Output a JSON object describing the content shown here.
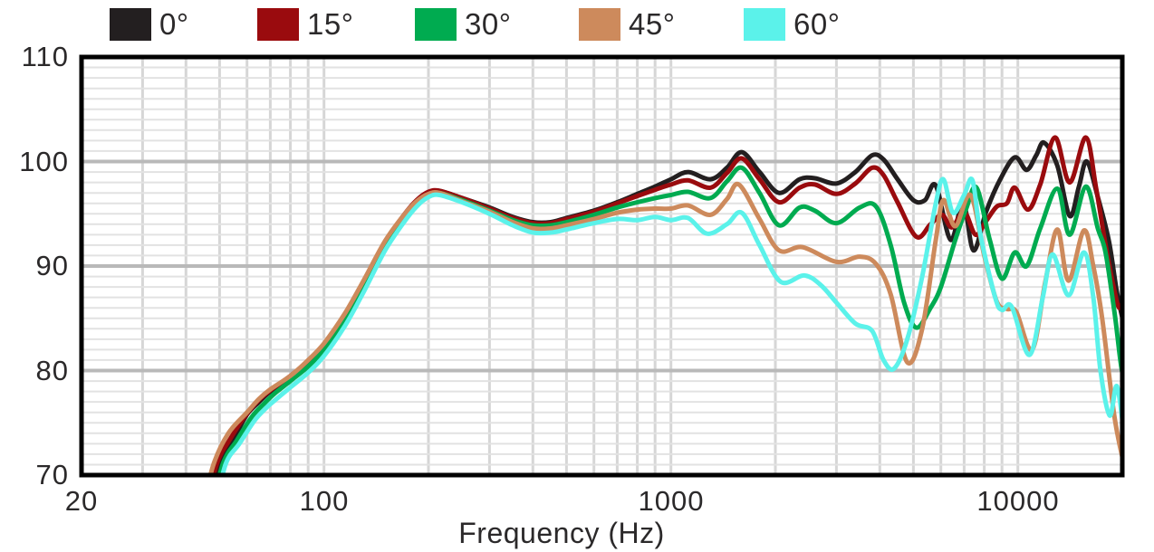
{
  "chart_data": {
    "type": "line",
    "title": "",
    "xlabel": "Frequency (Hz)",
    "ylabel": "",
    "x_scale": "log",
    "xlim": [
      20,
      20000
    ],
    "ylim": [
      70,
      110
    ],
    "grid": true,
    "legend_position": "top",
    "y_minor_step_db": 1,
    "y_major_step_db": 10,
    "x_ticks": [
      {
        "value": 20,
        "label": "20"
      },
      {
        "value": 100,
        "label": "100"
      },
      {
        "value": 1000,
        "label": "1000"
      },
      {
        "value": 10000,
        "label": "10000"
      }
    ],
    "y_ticks": [
      {
        "value": 110,
        "label": "110"
      },
      {
        "value": 100,
        "label": "100"
      },
      {
        "value": 90,
        "label": "90"
      },
      {
        "value": 80,
        "label": "80"
      },
      {
        "value": 70,
        "label": "70"
      }
    ],
    "x_gridlines": [
      30,
      40,
      50,
      60,
      70,
      80,
      90,
      100,
      200,
      300,
      400,
      500,
      600,
      700,
      800,
      900,
      1000,
      2000,
      3000,
      4000,
      5000,
      6000,
      7000,
      8000,
      9000,
      10000
    ],
    "series": [
      {
        "name": "0°",
        "color": "#231f20",
        "points": [
          [
            46,
            66
          ],
          [
            50,
            71
          ],
          [
            55,
            73.5
          ],
          [
            60,
            75.8
          ],
          [
            65,
            77
          ],
          [
            70,
            78
          ],
          [
            80,
            79.3
          ],
          [
            90,
            80.7
          ],
          [
            100,
            82.3
          ],
          [
            115,
            85.2
          ],
          [
            130,
            88.3
          ],
          [
            150,
            92.2
          ],
          [
            170,
            94.8
          ],
          [
            185,
            96.2
          ],
          [
            200,
            97
          ],
          [
            215,
            97.2
          ],
          [
            250,
            96.5
          ],
          [
            300,
            95.6
          ],
          [
            350,
            94.7
          ],
          [
            400,
            94.2
          ],
          [
            450,
            94.2
          ],
          [
            500,
            94.6
          ],
          [
            600,
            95.3
          ],
          [
            700,
            96.1
          ],
          [
            800,
            96.9
          ],
          [
            900,
            97.6
          ],
          [
            1000,
            98.3
          ],
          [
            1120,
            99
          ],
          [
            1300,
            98.3
          ],
          [
            1450,
            99.4
          ],
          [
            1600,
            100.9
          ],
          [
            1800,
            99
          ],
          [
            2050,
            97
          ],
          [
            2350,
            98.3
          ],
          [
            2600,
            98.4
          ],
          [
            3000,
            97.9
          ],
          [
            3400,
            99
          ],
          [
            3800,
            100.6
          ],
          [
            4100,
            100.2
          ],
          [
            4500,
            98.3
          ],
          [
            5000,
            96.3
          ],
          [
            5400,
            96.3
          ],
          [
            5800,
            97.7
          ],
          [
            6400,
            92.5
          ],
          [
            6950,
            96.1
          ],
          [
            7450,
            91.5
          ],
          [
            8100,
            95.2
          ],
          [
            8900,
            98.3
          ],
          [
            9800,
            100.4
          ],
          [
            10600,
            99.2
          ],
          [
            11300,
            100.6
          ],
          [
            11900,
            101.8
          ],
          [
            13000,
            99.6
          ],
          [
            14100,
            94.8
          ],
          [
            15000,
            97.6
          ],
          [
            15800,
            100
          ],
          [
            17000,
            96.6
          ],
          [
            18300,
            92.4
          ],
          [
            19300,
            87.5
          ],
          [
            20400,
            83.8
          ]
        ]
      },
      {
        "name": "15°",
        "color": "#9a0b0e",
        "points": [
          [
            45,
            66
          ],
          [
            49,
            71
          ],
          [
            54,
            73.6
          ],
          [
            60,
            75.9
          ],
          [
            65,
            77.2
          ],
          [
            70,
            78.1
          ],
          [
            80,
            79.5
          ],
          [
            90,
            80.9
          ],
          [
            100,
            82.5
          ],
          [
            115,
            85.4
          ],
          [
            130,
            88.5
          ],
          [
            150,
            92.3
          ],
          [
            170,
            94.9
          ],
          [
            185,
            96.3
          ],
          [
            200,
            97.1
          ],
          [
            215,
            97.2
          ],
          [
            250,
            96.5
          ],
          [
            300,
            95.5
          ],
          [
            350,
            94.6
          ],
          [
            400,
            94.1
          ],
          [
            450,
            94.1
          ],
          [
            500,
            94.5
          ],
          [
            600,
            95.2
          ],
          [
            700,
            96
          ],
          [
            800,
            96.7
          ],
          [
            900,
            97.3
          ],
          [
            1000,
            97.8
          ],
          [
            1120,
            98.2
          ],
          [
            1300,
            97.5
          ],
          [
            1450,
            98.9
          ],
          [
            1600,
            100.3
          ],
          [
            1800,
            98.3
          ],
          [
            2050,
            96.1
          ],
          [
            2350,
            97.5
          ],
          [
            2600,
            97.8
          ],
          [
            3000,
            96.9
          ],
          [
            3400,
            97.9
          ],
          [
            3800,
            99.4
          ],
          [
            4100,
            98.7
          ],
          [
            4500,
            96.1
          ],
          [
            5100,
            92.8
          ],
          [
            5600,
            94
          ],
          [
            6050,
            94.9
          ],
          [
            6450,
            93.7
          ],
          [
            7000,
            95.2
          ],
          [
            7550,
            93
          ],
          [
            8100,
            94.3
          ],
          [
            8700,
            95.7
          ],
          [
            9300,
            96
          ],
          [
            9800,
            97.5
          ],
          [
            10700,
            95.4
          ],
          [
            11600,
            97.8
          ],
          [
            12800,
            102.3
          ],
          [
            14100,
            98
          ],
          [
            15700,
            102.3
          ],
          [
            16800,
            97.5
          ],
          [
            17800,
            92.5
          ],
          [
            18800,
            88.3
          ],
          [
            19600,
            86
          ],
          [
            20400,
            87.5
          ]
        ]
      },
      {
        "name": "30°",
        "color": "#00ab50",
        "points": [
          [
            47,
            66
          ],
          [
            51,
            71
          ],
          [
            56,
            73.3
          ],
          [
            62,
            75.6
          ],
          [
            67,
            76.8
          ],
          [
            72,
            77.8
          ],
          [
            80,
            79
          ],
          [
            90,
            80.4
          ],
          [
            100,
            82
          ],
          [
            115,
            85
          ],
          [
            130,
            88.1
          ],
          [
            150,
            92
          ],
          [
            170,
            94.6
          ],
          [
            185,
            96
          ],
          [
            200,
            96.8
          ],
          [
            215,
            97
          ],
          [
            250,
            96.3
          ],
          [
            300,
            95.3
          ],
          [
            350,
            94.4
          ],
          [
            400,
            93.9
          ],
          [
            450,
            93.9
          ],
          [
            500,
            94.2
          ],
          [
            600,
            94.9
          ],
          [
            700,
            95.6
          ],
          [
            800,
            96.1
          ],
          [
            900,
            96.5
          ],
          [
            1000,
            96.8
          ],
          [
            1120,
            97.1
          ],
          [
            1300,
            96.5
          ],
          [
            1450,
            98.1
          ],
          [
            1600,
            99.4
          ],
          [
            1800,
            97
          ],
          [
            2050,
            93.9
          ],
          [
            2350,
            95.6
          ],
          [
            2600,
            95.3
          ],
          [
            3000,
            94.1
          ],
          [
            3500,
            95.6
          ],
          [
            3900,
            95.7
          ],
          [
            4300,
            92
          ],
          [
            4700,
            86.5
          ],
          [
            5100,
            84.1
          ],
          [
            5600,
            86
          ],
          [
            6000,
            88
          ],
          [
            6600,
            92.5
          ],
          [
            7100,
            95.5
          ],
          [
            7600,
            97.5
          ],
          [
            8300,
            92.5
          ],
          [
            9000,
            88.8
          ],
          [
            9800,
            91.3
          ],
          [
            10600,
            90
          ],
          [
            11600,
            93.6
          ],
          [
            13000,
            97.4
          ],
          [
            14100,
            93
          ],
          [
            15700,
            97.6
          ],
          [
            17000,
            93.6
          ],
          [
            17900,
            91.3
          ],
          [
            19000,
            85.5
          ],
          [
            20100,
            79.7
          ],
          [
            20600,
            85
          ]
        ]
      },
      {
        "name": "45°",
        "color": "#cd8a5c",
        "points": [
          [
            44,
            66
          ],
          [
            48,
            71
          ],
          [
            53,
            74
          ],
          [
            60,
            76
          ],
          [
            65,
            77.3
          ],
          [
            70,
            78.2
          ],
          [
            80,
            79.5
          ],
          [
            90,
            81
          ],
          [
            100,
            82.6
          ],
          [
            115,
            85.5
          ],
          [
            130,
            88.6
          ],
          [
            150,
            92.4
          ],
          [
            170,
            94.9
          ],
          [
            185,
            96.2
          ],
          [
            200,
            96.9
          ],
          [
            215,
            97
          ],
          [
            250,
            96.2
          ],
          [
            300,
            95.2
          ],
          [
            350,
            94.2
          ],
          [
            400,
            93.6
          ],
          [
            450,
            93.6
          ],
          [
            500,
            93.9
          ],
          [
            600,
            94.5
          ],
          [
            700,
            95.1
          ],
          [
            800,
            95.4
          ],
          [
            900,
            95.5
          ],
          [
            1000,
            95.5
          ],
          [
            1120,
            95.8
          ],
          [
            1300,
            94.9
          ],
          [
            1450,
            96.4
          ],
          [
            1570,
            97.8
          ],
          [
            1800,
            94.5
          ],
          [
            2050,
            91.5
          ],
          [
            2400,
            91.8
          ],
          [
            3000,
            90.4
          ],
          [
            3500,
            90.9
          ],
          [
            3900,
            90.2
          ],
          [
            4300,
            87.3
          ],
          [
            4800,
            80.8
          ],
          [
            5300,
            84
          ],
          [
            5800,
            92.5
          ],
          [
            6100,
            96.3
          ],
          [
            6600,
            93.8
          ],
          [
            7300,
            96.8
          ],
          [
            8000,
            91
          ],
          [
            8700,
            86.6
          ],
          [
            9300,
            85.9
          ],
          [
            9900,
            85.6
          ],
          [
            11000,
            82
          ],
          [
            12000,
            88.5
          ],
          [
            13000,
            93.5
          ],
          [
            14000,
            88.6
          ],
          [
            15500,
            93.4
          ],
          [
            16500,
            90
          ],
          [
            17500,
            85
          ],
          [
            19000,
            75.5
          ],
          [
            20400,
            70.5
          ]
        ]
      },
      {
        "name": "60°",
        "color": "#5bf2ea",
        "points": [
          [
            48,
            66
          ],
          [
            52,
            71
          ],
          [
            57,
            73
          ],
          [
            63,
            75.2
          ],
          [
            68,
            76.4
          ],
          [
            73,
            77.3
          ],
          [
            80,
            78.4
          ],
          [
            90,
            79.8
          ],
          [
            100,
            81.4
          ],
          [
            115,
            84.3
          ],
          [
            130,
            87.5
          ],
          [
            150,
            91.5
          ],
          [
            170,
            94.2
          ],
          [
            185,
            95.7
          ],
          [
            200,
            96.6
          ],
          [
            215,
            96.8
          ],
          [
            250,
            96.1
          ],
          [
            300,
            95
          ],
          [
            350,
            93.9
          ],
          [
            400,
            93.2
          ],
          [
            450,
            93.2
          ],
          [
            500,
            93.5
          ],
          [
            600,
            94.1
          ],
          [
            700,
            94.5
          ],
          [
            800,
            94.4
          ],
          [
            900,
            94.7
          ],
          [
            1000,
            94.4
          ],
          [
            1120,
            94.6
          ],
          [
            1270,
            93.1
          ],
          [
            1450,
            94
          ],
          [
            1600,
            95.1
          ],
          [
            1800,
            92
          ],
          [
            2070,
            88.5
          ],
          [
            2420,
            89.1
          ],
          [
            2700,
            88.2
          ],
          [
            3000,
            86.5
          ],
          [
            3400,
            84.5
          ],
          [
            3800,
            83.8
          ],
          [
            4100,
            81
          ],
          [
            4400,
            80.2
          ],
          [
            4800,
            83
          ],
          [
            5300,
            89
          ],
          [
            5800,
            96
          ],
          [
            6100,
            98.3
          ],
          [
            6500,
            95.1
          ],
          [
            7000,
            96.8
          ],
          [
            7400,
            98.2
          ],
          [
            7800,
            93
          ],
          [
            8600,
            87
          ],
          [
            9000,
            85.8
          ],
          [
            9600,
            86.1
          ],
          [
            10800,
            81.5
          ],
          [
            11800,
            87
          ],
          [
            12600,
            91.1
          ],
          [
            14000,
            87.2
          ],
          [
            15500,
            91.3
          ],
          [
            16500,
            87
          ],
          [
            17300,
            80
          ],
          [
            18400,
            75.7
          ],
          [
            19300,
            78.5
          ],
          [
            20300,
            73.5
          ]
        ]
      }
    ]
  }
}
